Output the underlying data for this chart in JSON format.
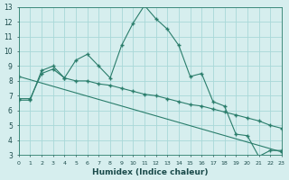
{
  "line1_x": [
    0,
    1,
    2,
    3,
    4,
    5,
    6,
    7,
    8,
    9,
    10,
    11,
    12,
    13,
    14,
    15,
    16,
    17,
    18,
    19,
    20,
    21,
    22,
    23
  ],
  "line1_y": [
    6.7,
    6.7,
    8.7,
    9.0,
    8.2,
    9.4,
    9.8,
    9.0,
    8.2,
    10.4,
    11.9,
    13.1,
    12.2,
    11.5,
    10.4,
    8.3,
    8.5,
    6.6,
    6.3,
    4.4,
    4.3,
    2.9,
    3.3,
    3.3
  ],
  "line2_x": [
    0,
    23
  ],
  "line2_y": [
    8.3,
    3.2
  ],
  "line3_x": [
    0,
    1,
    2,
    3,
    4,
    5,
    6,
    7,
    8,
    9,
    10,
    11,
    12,
    13,
    14,
    15,
    16,
    17,
    18,
    19,
    20,
    21,
    22,
    23
  ],
  "line3_y": [
    6.8,
    6.8,
    8.5,
    8.8,
    8.2,
    8.0,
    8.0,
    7.8,
    7.7,
    7.5,
    7.3,
    7.1,
    7.0,
    6.8,
    6.6,
    6.4,
    6.3,
    6.1,
    5.9,
    5.7,
    5.5,
    5.3,
    5.0,
    4.8
  ],
  "line_color": "#2a7d6b",
  "bg_color": "#d6eeee",
  "grid_color": "#a8d8d8",
  "xlabel": "Humidex (Indice chaleur)",
  "xlim": [
    0,
    23
  ],
  "ylim": [
    3,
    13
  ],
  "xticks": [
    0,
    1,
    2,
    3,
    4,
    5,
    6,
    7,
    8,
    9,
    10,
    11,
    12,
    13,
    14,
    15,
    16,
    17,
    18,
    19,
    20,
    21,
    22,
    23
  ],
  "yticks": [
    3,
    4,
    5,
    6,
    7,
    8,
    9,
    10,
    11,
    12,
    13
  ]
}
